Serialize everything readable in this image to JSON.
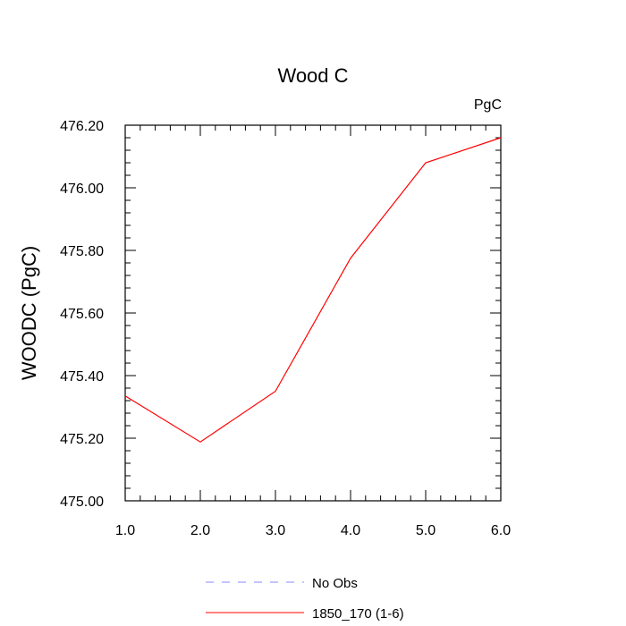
{
  "chart_data": {
    "type": "line",
    "title": "Wood C",
    "units_label": "PgC",
    "ylabel": "WOODC  (PgC)",
    "xlabel": "",
    "xlim": [
      1.0,
      6.0
    ],
    "ylim": [
      475.0,
      476.2
    ],
    "x_ticks": [
      "1.0",
      "2.0",
      "3.0",
      "4.0",
      "5.0",
      "6.0"
    ],
    "y_ticks": [
      "475.00",
      "475.20",
      "475.40",
      "475.60",
      "475.80",
      "476.00",
      "476.20"
    ],
    "series": [
      {
        "name": "1850_170 (1-6)",
        "color": "#ff0000",
        "style": "solid",
        "x": [
          1.0,
          2.0,
          3.0,
          4.0,
          5.0,
          6.0
        ],
        "y": [
          475.335,
          475.188,
          475.35,
          475.775,
          476.08,
          476.16
        ]
      }
    ],
    "legend": [
      {
        "label": "No Obs",
        "color": "#8888ff",
        "style": "dashed"
      },
      {
        "label": "1850_170 (1-6)",
        "color": "#ff0000",
        "style": "solid"
      }
    ],
    "legend_position": "bottom-center",
    "grid": false
  }
}
